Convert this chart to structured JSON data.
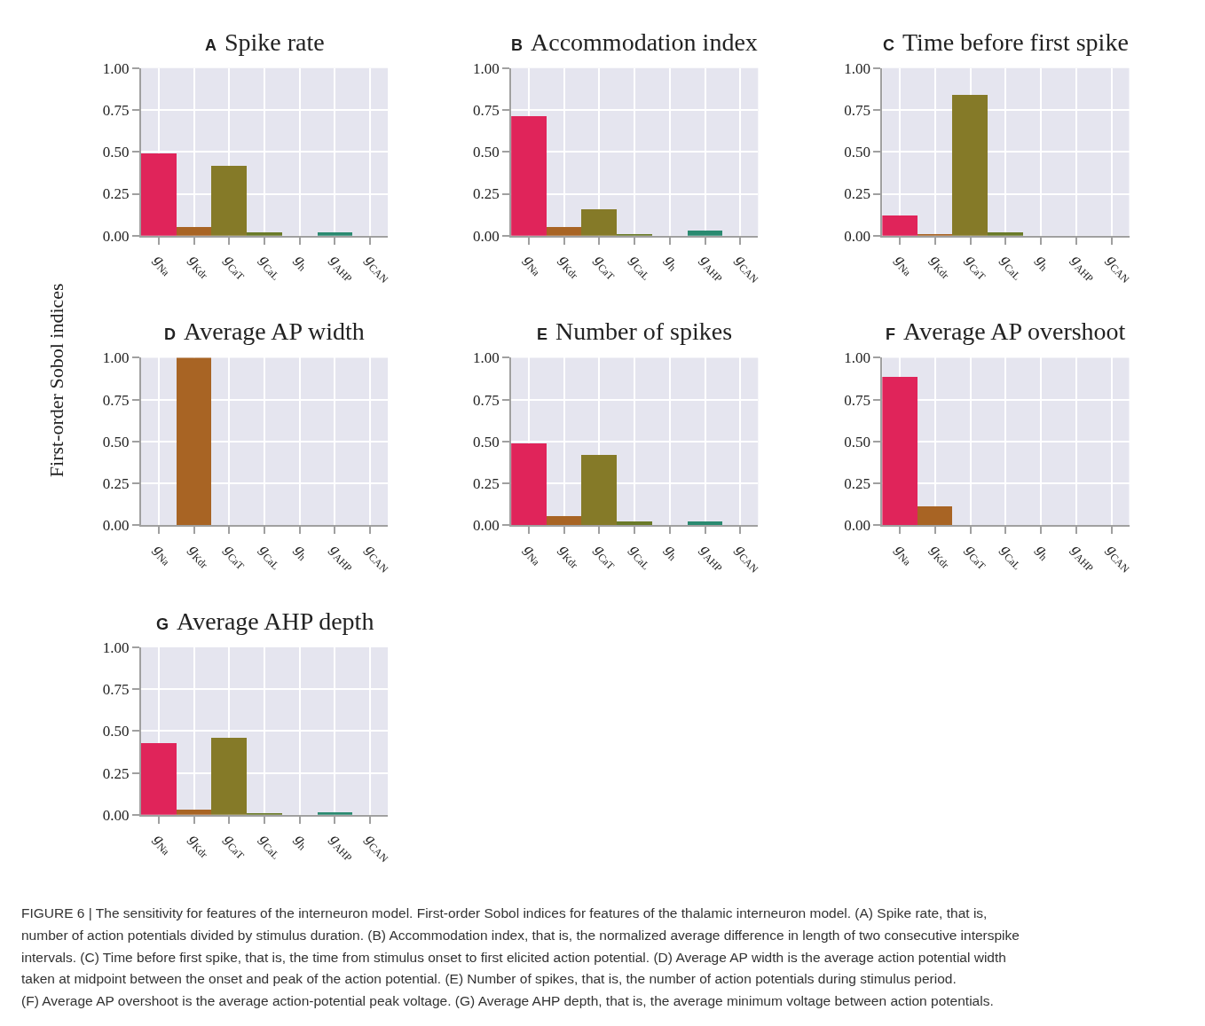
{
  "chart_data": [
    {
      "type": "bar",
      "title": "A Spike rate",
      "categories": [
        "g$_{Na}$",
        "g$_{Kdr}$",
        "g$_{CaT}$",
        "g$_{CaL}$",
        "g$_{h}$",
        "g$_{AHP}$",
        "g$_{CAN}$"
      ],
      "values": [
        0.49,
        0.05,
        0.42,
        0.02,
        0,
        0.02,
        0
      ],
      "colors": [
        "#e0245a",
        "#a86424",
        "#857a28",
        "#6a7a28",
        "#3d8a48",
        "#2a8a70",
        "#3b7fb0"
      ],
      "ylim": [
        0,
        1
      ],
      "yticks": [
        {
          "value": 0,
          "label": "0.00"
        },
        {
          "value": 0.25,
          "label": "0.25"
        },
        {
          "value": 0.5,
          "label": "0.50"
        },
        {
          "value": 0.75,
          "label": "0.75"
        },
        {
          "value": 1,
          "label": "1.00"
        }
      ],
      "grid": true
    },
    {
      "type": "bar",
      "title": "B Accommodation index",
      "categories": [
        "g$_{Na}$",
        "g$_{Kdr}$",
        "g$_{CaT}$",
        "g$_{CaL}$",
        "g$_{h}$",
        "g$_{AHP}$",
        "g$_{CAN}$"
      ],
      "values": [
        0.715,
        0.05,
        0.16,
        0.01,
        0,
        0.03,
        0
      ],
      "colors": [
        "#e0245a",
        "#a86424",
        "#857a28",
        "#6a7a28",
        "#3d8a48",
        "#2a8a70",
        "#3b7fb0"
      ],
      "ylim": [
        0,
        1
      ],
      "yticks": [
        {
          "value": 0,
          "label": "0.00"
        },
        {
          "value": 0.25,
          "label": "0.25"
        },
        {
          "value": 0.5,
          "label": "0.50"
        },
        {
          "value": 0.75,
          "label": "0.75"
        },
        {
          "value": 1,
          "label": "1.00"
        }
      ],
      "grid": true
    },
    {
      "type": "bar",
      "title": "C Time before first spike",
      "categories": [
        "g$_{Na}$",
        "g$_{Kdr}$",
        "g$_{CaT}$",
        "g$_{CaL}$",
        "g$_{h}$",
        "g$_{AHP}$",
        "g$_{CAN}$"
      ],
      "values": [
        0.12,
        0.01,
        0.84,
        0.02,
        0,
        0,
        0
      ],
      "colors": [
        "#e0245a",
        "#a86424",
        "#857a28",
        "#6a7a28",
        "#3d8a48",
        "#2a8a70",
        "#3b7fb0"
      ],
      "ylim": [
        0,
        1
      ],
      "yticks": [
        {
          "value": 0,
          "label": "0.00"
        },
        {
          "value": 0.25,
          "label": "0.25"
        },
        {
          "value": 0.5,
          "label": "0.50"
        },
        {
          "value": 0.75,
          "label": "0.75"
        },
        {
          "value": 1,
          "label": "1.00"
        }
      ],
      "grid": true
    },
    {
      "type": "bar",
      "title": "D Average AP width",
      "ylabel": "First-order Sobol indices",
      "categories": [
        "g$_{Na}$",
        "g$_{Kdr}$",
        "g$_{CaT}$",
        "g$_{CaL}$",
        "g$_{h}$",
        "g$_{AHP}$",
        "g$_{CAN}$"
      ],
      "values": [
        0,
        1,
        0,
        0,
        0,
        0,
        0
      ],
      "colors": [
        "#e0245a",
        "#a86424",
        "#857a28",
        "#6a7a28",
        "#3d8a48",
        "#2a8a70",
        "#3b7fb0"
      ],
      "ylim": [
        0,
        1
      ],
      "yticks": [
        {
          "value": 0,
          "label": "0.00"
        },
        {
          "value": 0.25,
          "label": "0.25"
        },
        {
          "value": 0.5,
          "label": "0.50"
        },
        {
          "value": 0.75,
          "label": "0.75"
        },
        {
          "value": 1,
          "label": "1.00"
        }
      ],
      "grid": true
    },
    {
      "type": "bar",
      "title": "E Number of spikes",
      "categories": [
        "g$_{Na}$",
        "g$_{Kdr}$",
        "g$_{CaT}$",
        "g$_{CaL}$",
        "g$_{h}$",
        "g$_{AHP}$",
        "g$_{CAN}$"
      ],
      "values": [
        0.485,
        0.05,
        0.42,
        0.02,
        0,
        0.02,
        0
      ],
      "colors": [
        "#e0245a",
        "#a86424",
        "#857a28",
        "#6a7a28",
        "#3d8a48",
        "#2a8a70",
        "#3b7fb0"
      ],
      "ylim": [
        0,
        1
      ],
      "yticks": [
        {
          "value": 0,
          "label": "0.00"
        },
        {
          "value": 0.25,
          "label": "0.25"
        },
        {
          "value": 0.5,
          "label": "0.50"
        },
        {
          "value": 0.75,
          "label": "0.75"
        },
        {
          "value": 1,
          "label": "1.00"
        }
      ],
      "grid": true
    },
    {
      "type": "bar",
      "title": "F Average AP overshoot",
      "categories": [
        "g$_{Na}$",
        "g$_{Kdr}$",
        "g$_{CaT}$",
        "g$_{CaL}$",
        "g$_{h}$",
        "g$_{AHP}$",
        "g$_{CAN}$"
      ],
      "values": [
        0.885,
        0.11,
        0,
        0,
        0,
        0,
        0
      ],
      "colors": [
        "#e0245a",
        "#a86424",
        "#857a28",
        "#6a7a28",
        "#3d8a48",
        "#2a8a70",
        "#3b7fb0"
      ],
      "ylim": [
        0,
        1
      ],
      "yticks": [
        {
          "value": 0,
          "label": "0.00"
        },
        {
          "value": 0.25,
          "label": "0.25"
        },
        {
          "value": 0.5,
          "label": "0.50"
        },
        {
          "value": 0.75,
          "label": "0.75"
        },
        {
          "value": 1,
          "label": "1.00"
        }
      ],
      "grid": true
    },
    {
      "type": "bar",
      "title": "G Average AHP depth",
      "categories": [
        "g$_{Na}$",
        "g$_{Kdr}$",
        "g$_{CaT}$",
        "g$_{CaL}$",
        "g$_{h}$",
        "g$_{AHP}$",
        "g$_{CAN}$"
      ],
      "values": [
        0.43,
        0.03,
        0.46,
        0.005,
        0,
        0.015,
        0
      ],
      "colors": [
        "#e0245a",
        "#a86424",
        "#857a28",
        "#6a7a28",
        "#3d8a48",
        "#2a8a70",
        "#3b7fb0"
      ],
      "ylim": [
        0,
        1
      ],
      "yticks": [
        {
          "value": 0,
          "label": "0.00"
        },
        {
          "value": 0.25,
          "label": "0.25"
        },
        {
          "value": 0.5,
          "label": "0.50"
        },
        {
          "value": 0.75,
          "label": "0.75"
        },
        {
          "value": 1,
          "label": "1.00"
        }
      ],
      "grid": true,
      "annotations": [
        "FIGURE 6 | The sensitivity for features of the interneuron model. First-order Sobol indices for features of the thalamic interneuron model. (A) Spike rate, that is,",
        "number of action potentials divided by stimulus duration. (B) Accommodation index, that is, the normalized average difference in length of two consecutive interspike",
        "intervals. (C) Time before first spike, that is, the time from stimulus onset to first elicited action potential. (D) Average AP width is the average action potential width",
        "taken at midpoint between the onset and peak of the action potential. (E) Number of spikes, that is, the number of action potentials during stimulus period.",
        "(F) Average AP overshoot is the average action-potential peak voltage. (G) Average AHP depth, that is, the average minimum voltage between action potentials."
      ]
    }
  ]
}
